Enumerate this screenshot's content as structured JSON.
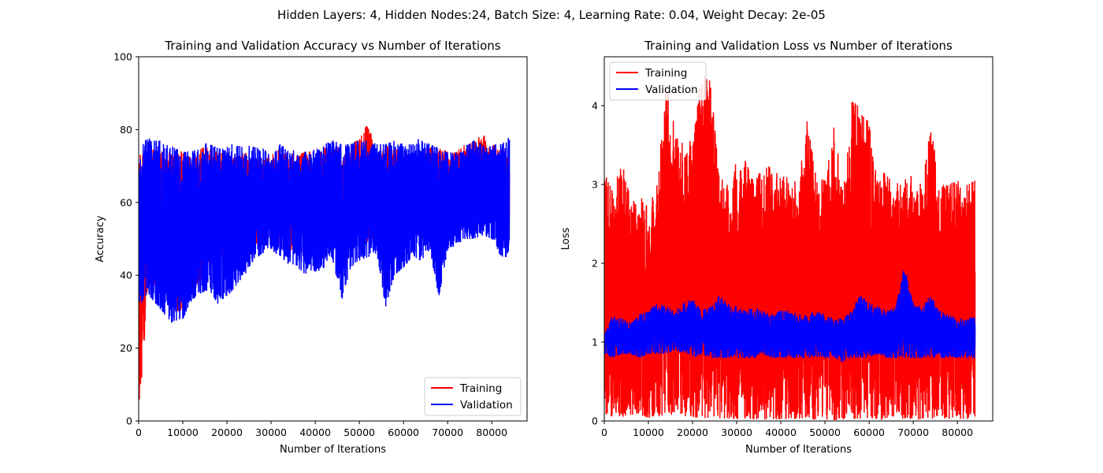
{
  "figure": {
    "suptitle": "Hidden Layers: 4, Hidden Nodes:24, Batch Size: 4, Learning Rate: 0.04, Weight Decay: 2e-05"
  },
  "colors": {
    "training": "#ff0000",
    "validation": "#0000ff"
  },
  "chart_data": [
    {
      "type": "line",
      "title": "Training and Validation Accuracy vs Number of Iterations",
      "xlabel": "Number of Iterations",
      "ylabel": "Accuracy",
      "xlim": [
        0,
        88000
      ],
      "ylim": [
        0,
        100
      ],
      "xticks": [
        0,
        10000,
        20000,
        30000,
        40000,
        50000,
        60000,
        70000,
        80000
      ],
      "yticks": [
        0,
        20,
        40,
        60,
        80,
        100
      ],
      "grid": false,
      "legend": {
        "position": "lower-right",
        "entries": [
          "Training",
          "Validation"
        ]
      },
      "x": [
        0,
        2000,
        4000,
        6000,
        8000,
        10000,
        12000,
        14000,
        16000,
        18000,
        20000,
        22000,
        24000,
        26000,
        28000,
        30000,
        32000,
        34000,
        36000,
        38000,
        40000,
        42000,
        44000,
        46000,
        48000,
        50000,
        52000,
        54000,
        56000,
        58000,
        60000,
        62000,
        64000,
        66000,
        68000,
        70000,
        72000,
        74000,
        76000,
        78000,
        80000,
        82000,
        84000
      ],
      "series": [
        {
          "name": "Training",
          "color": "#ff0000",
          "upper": [
            73,
            76,
            74,
            75,
            74,
            74,
            73,
            75,
            75,
            74,
            73,
            73,
            74,
            72,
            72,
            73,
            75,
            74,
            73,
            74,
            74,
            75,
            76,
            75,
            76,
            78,
            82,
            74,
            76,
            75,
            74,
            73,
            74,
            76,
            75,
            74,
            74,
            76,
            77,
            79,
            76,
            75,
            73
          ],
          "lower": [
            0,
            35,
            38,
            33,
            30,
            30,
            34,
            38,
            42,
            45,
            46,
            47,
            48,
            48,
            49,
            49,
            48,
            47,
            46,
            45,
            46,
            46,
            47,
            48,
            48,
            49,
            49,
            50,
            50,
            50,
            51,
            51,
            51,
            52,
            52,
            53,
            53,
            54,
            54,
            55,
            55,
            55,
            56
          ]
        },
        {
          "name": "Validation",
          "color": "#0000ff",
          "upper": [
            74,
            78,
            77,
            77,
            75,
            74,
            74,
            75,
            77,
            76,
            76,
            76,
            75,
            76,
            75,
            73,
            76,
            75,
            74,
            74,
            75,
            76,
            77,
            76,
            76,
            77,
            77,
            76,
            76,
            77,
            76,
            76,
            78,
            76,
            75,
            74,
            74,
            76,
            77,
            76,
            76,
            76,
            78
          ],
          "lower": [
            31,
            35,
            32,
            29,
            26,
            28,
            33,
            35,
            36,
            32,
            34,
            37,
            40,
            44,
            46,
            47,
            45,
            43,
            42,
            40,
            41,
            42,
            44,
            33,
            42,
            44,
            45,
            46,
            31,
            40,
            42,
            45,
            44,
            47,
            34,
            47,
            48,
            50,
            50,
            51,
            50,
            45,
            45
          ]
        }
      ]
    },
    {
      "type": "line",
      "title": "Training and Validation Loss vs Number of Iterations",
      "xlabel": "Number of Iterations",
      "ylabel": "Loss",
      "xlim": [
        0,
        88000
      ],
      "ylim": [
        0,
        4.62
      ],
      "xticks": [
        0,
        10000,
        20000,
        30000,
        40000,
        50000,
        60000,
        70000,
        80000
      ],
      "yticks": [
        0,
        1,
        2,
        3,
        4
      ],
      "grid": false,
      "legend": {
        "position": "upper-left",
        "entries": [
          "Training",
          "Validation"
        ]
      },
      "x": [
        0,
        2000,
        4000,
        6000,
        8000,
        10000,
        12000,
        14000,
        16000,
        18000,
        20000,
        22000,
        24000,
        26000,
        28000,
        30000,
        32000,
        34000,
        36000,
        38000,
        40000,
        42000,
        44000,
        46000,
        48000,
        50000,
        52000,
        54000,
        56000,
        58000,
        60000,
        62000,
        64000,
        66000,
        68000,
        70000,
        72000,
        74000,
        76000,
        78000,
        80000,
        82000,
        84000
      ],
      "series": [
        {
          "name": "Training",
          "color": "#ff0000",
          "upper": [
            3.15,
            2.9,
            3.33,
            2.8,
            2.9,
            2.7,
            3.0,
            4.3,
            3.7,
            3.55,
            3.55,
            4.38,
            4.37,
            3.1,
            3.0,
            3.3,
            3.3,
            3.0,
            3.3,
            3.2,
            3.1,
            3.1,
            3.0,
            3.85,
            3.1,
            3.05,
            3.75,
            3.0,
            4.05,
            4.0,
            3.8,
            3.0,
            3.3,
            3.0,
            3.1,
            3.1,
            3.0,
            3.75,
            3.0,
            3.0,
            3.05,
            3.0,
            3.05
          ],
          "lower": [
            0.05,
            0.05,
            0.05,
            0.08,
            0.07,
            0.04,
            0.05,
            0.08,
            0.07,
            0.06,
            0.05,
            0.03,
            0.04,
            0.03,
            0.03,
            0.02,
            0.03,
            0.02,
            0.02,
            0.02,
            0.02,
            0.02,
            0.03,
            0.01,
            0.02,
            0.02,
            0.01,
            0.02,
            0.03,
            0.02,
            0.04,
            0.02,
            0.0,
            0.02,
            0.03,
            0.02,
            0.02,
            0.03,
            0.03,
            0.03,
            0.02,
            0.02,
            0.05
          ]
        },
        {
          "name": "Validation",
          "color": "#0000ff",
          "upper": [
            1.1,
            1.35,
            1.3,
            1.25,
            1.35,
            1.4,
            1.5,
            1.45,
            1.4,
            1.5,
            1.55,
            1.4,
            1.45,
            1.6,
            1.5,
            1.45,
            1.4,
            1.45,
            1.4,
            1.35,
            1.4,
            1.4,
            1.35,
            1.35,
            1.4,
            1.35,
            1.3,
            1.3,
            1.4,
            1.6,
            1.5,
            1.45,
            1.4,
            1.45,
            1.95,
            1.5,
            1.45,
            1.6,
            1.4,
            1.35,
            1.3,
            1.3,
            1.35
          ],
          "lower": [
            0.85,
            0.8,
            0.85,
            0.85,
            0.8,
            0.85,
            0.85,
            0.85,
            0.9,
            0.85,
            0.8,
            0.85,
            0.8,
            0.8,
            0.8,
            0.8,
            0.8,
            0.8,
            0.85,
            0.8,
            0.8,
            0.8,
            0.8,
            0.8,
            0.8,
            0.8,
            0.8,
            0.75,
            0.8,
            0.8,
            0.8,
            0.85,
            0.8,
            0.8,
            0.8,
            0.8,
            0.8,
            0.8,
            0.8,
            0.8,
            0.8,
            0.8,
            0.8
          ]
        }
      ]
    }
  ]
}
